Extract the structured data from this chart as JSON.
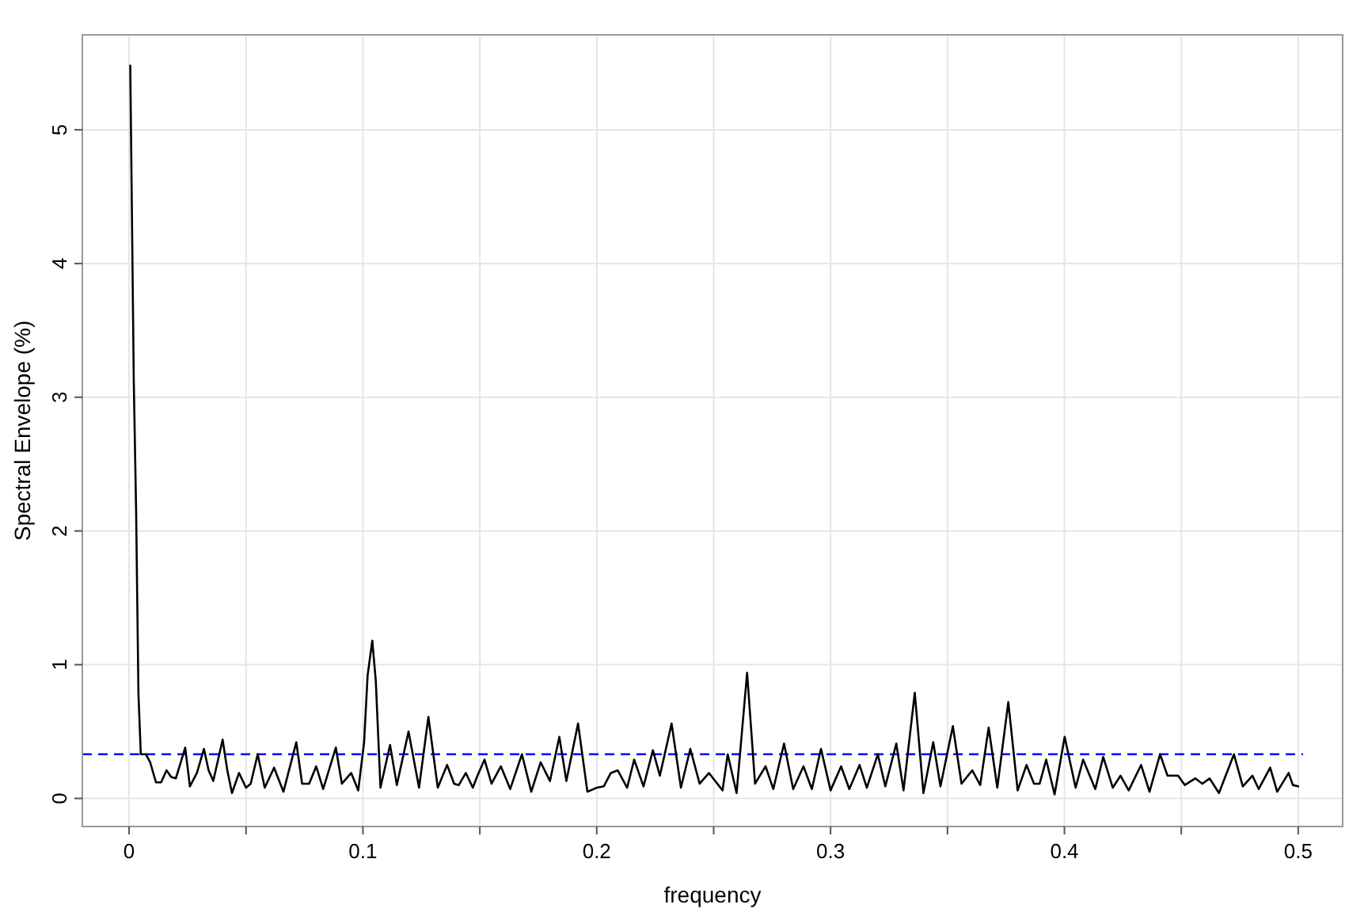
{
  "chart_data": {
    "type": "line",
    "xlabel": "frequency",
    "ylabel": "Spectral Envelope (%)",
    "xlim": [
      -0.02,
      0.519
    ],
    "ylim": [
      -0.21,
      5.71
    ],
    "xticks": [
      0,
      {
        "value": 0.05,
        "label": null
      },
      0.1,
      {
        "value": 0.15,
        "label": null
      },
      0.2,
      {
        "value": 0.25,
        "label": null
      },
      0.3,
      {
        "value": 0.35,
        "label": null
      },
      0.4,
      {
        "value": 0.45,
        "label": null
      },
      0.5
    ],
    "yticks": [
      0,
      1,
      2,
      3,
      4,
      5
    ],
    "grid": true,
    "line_style": "solid",
    "marker": "none",
    "ref_lines": [
      {
        "axis": "y",
        "value": 0.33,
        "color": "#0000ff",
        "line_style": "dashed"
      }
    ],
    "series": [
      {
        "color": "#000000",
        "x": [
          0.0005,
          0.002,
          0.003,
          0.004,
          0.005,
          0.0072,
          0.009,
          0.0115,
          0.0137,
          0.016,
          0.018,
          0.02,
          0.024,
          0.026,
          0.029,
          0.032,
          0.034,
          0.036,
          0.04,
          0.042,
          0.044,
          0.047,
          0.05,
          0.052,
          0.055,
          0.058,
          0.062,
          0.066,
          0.0715,
          0.074,
          0.077,
          0.08,
          0.083,
          0.0884,
          0.091,
          0.095,
          0.098,
          0.1005,
          0.102,
          0.104,
          0.1055,
          0.1075,
          0.1116,
          0.1145,
          0.1195,
          0.124,
          0.128,
          0.132,
          0.136,
          0.139,
          0.141,
          0.144,
          0.147,
          0.149,
          0.152,
          0.155,
          0.159,
          0.163,
          0.168,
          0.172,
          0.176,
          0.18,
          0.184,
          0.187,
          0.192,
          0.196,
          0.2,
          0.203,
          0.206,
          0.209,
          0.213,
          0.216,
          0.22,
          0.224,
          0.227,
          0.232,
          0.236,
          0.24,
          0.244,
          0.248,
          0.2538,
          0.256,
          0.2598,
          0.2643,
          0.2677,
          0.2722,
          0.2755,
          0.2801,
          0.284,
          0.2884,
          0.292,
          0.2959,
          0.3,
          0.3045,
          0.308,
          0.3124,
          0.3155,
          0.3202,
          0.3234,
          0.3281,
          0.3312,
          0.336,
          0.3397,
          0.3439,
          0.347,
          0.3523,
          0.356,
          0.3606,
          0.364,
          0.3676,
          0.3713,
          0.376,
          0.38,
          0.3838,
          0.387,
          0.3894,
          0.3922,
          0.3958,
          0.4001,
          0.4048,
          0.408,
          0.4132,
          0.4166,
          0.4207,
          0.424,
          0.4275,
          0.4328,
          0.4364,
          0.4409,
          0.4441,
          0.4486,
          0.4515,
          0.456,
          0.459,
          0.4621,
          0.4661,
          0.4725,
          0.4763,
          0.4804,
          0.4831,
          0.488,
          0.491,
          0.4959,
          0.4977,
          0.5
        ],
        "values": [
          5.48,
          3.12,
          2.15,
          0.78,
          0.33,
          0.33,
          0.27,
          0.12,
          0.12,
          0.21,
          0.16,
          0.15,
          0.38,
          0.09,
          0.19,
          0.37,
          0.21,
          0.13,
          0.44,
          0.21,
          0.04,
          0.19,
          0.08,
          0.11,
          0.33,
          0.08,
          0.23,
          0.05,
          0.42,
          0.11,
          0.11,
          0.24,
          0.07,
          0.38,
          0.11,
          0.19,
          0.06,
          0.42,
          0.92,
          1.18,
          0.88,
          0.08,
          0.4,
          0.1,
          0.5,
          0.08,
          0.61,
          0.08,
          0.25,
          0.11,
          0.1,
          0.19,
          0.08,
          0.17,
          0.29,
          0.11,
          0.24,
          0.07,
          0.33,
          0.05,
          0.27,
          0.13,
          0.46,
          0.13,
          0.56,
          0.05,
          0.08,
          0.09,
          0.19,
          0.21,
          0.08,
          0.29,
          0.09,
          0.36,
          0.17,
          0.56,
          0.08,
          0.37,
          0.11,
          0.19,
          0.06,
          0.33,
          0.04,
          0.94,
          0.11,
          0.24,
          0.07,
          0.41,
          0.07,
          0.24,
          0.07,
          0.37,
          0.06,
          0.24,
          0.07,
          0.25,
          0.08,
          0.33,
          0.09,
          0.41,
          0.06,
          0.79,
          0.04,
          0.42,
          0.09,
          0.54,
          0.11,
          0.21,
          0.1,
          0.53,
          0.08,
          0.72,
          0.06,
          0.25,
          0.11,
          0.11,
          0.29,
          0.03,
          0.46,
          0.08,
          0.29,
          0.07,
          0.31,
          0.08,
          0.17,
          0.06,
          0.25,
          0.05,
          0.33,
          0.17,
          0.17,
          0.1,
          0.15,
          0.11,
          0.15,
          0.04,
          0.33,
          0.09,
          0.17,
          0.07,
          0.23,
          0.05,
          0.19,
          0.1,
          0.09
        ]
      }
    ]
  }
}
